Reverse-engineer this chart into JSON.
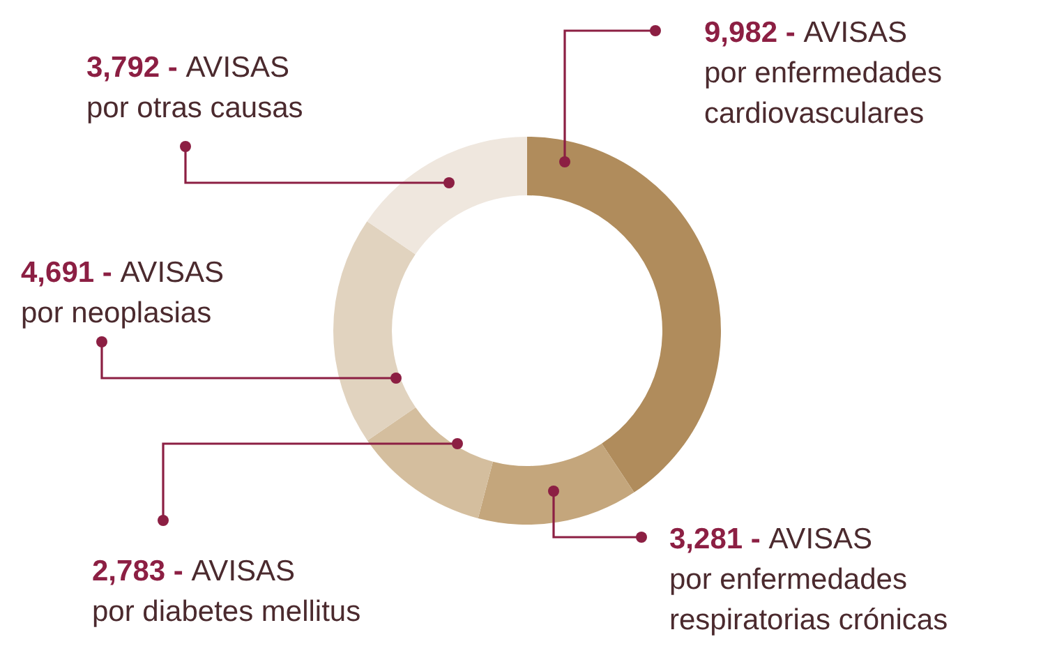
{
  "chart_data": {
    "type": "donut",
    "categories": [
      "AVISAS por enfermedades cardiovasculares",
      "AVISAS por enfermedades respiratorias crónicas",
      "AVISAS por diabetes mellitus",
      "AVISAS por neoplasias",
      "AVISAS por otras causas"
    ],
    "values": [
      9982,
      3281,
      2783,
      4691,
      3792
    ],
    "value_labels": [
      "9,982 -",
      "3,281 -",
      "2,783 -",
      "4,691 -",
      "3,792 -"
    ],
    "colors": [
      "#b08c5c",
      "#c4a67c",
      "#d4be9e",
      "#e1d3bf",
      "#efe7de"
    ],
    "data_labels": true
  }
}
